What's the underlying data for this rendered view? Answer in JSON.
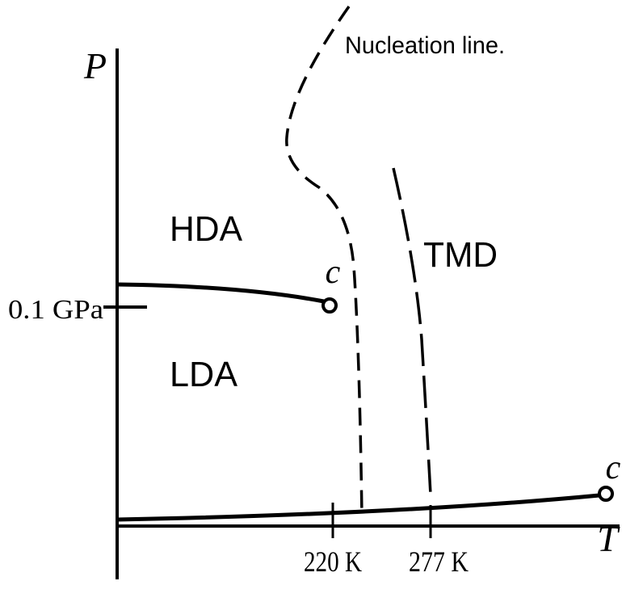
{
  "axes": {
    "y_label": "P",
    "x_label": "T",
    "y_tick": "0.1 GPa",
    "x_ticks": [
      "220 K",
      "277 K"
    ]
  },
  "regions": [
    "HDA",
    "LDA",
    "TMD"
  ],
  "annotations": {
    "nucleation": "Nucleation line.",
    "critical_points": [
      "c",
      "c"
    ]
  }
}
